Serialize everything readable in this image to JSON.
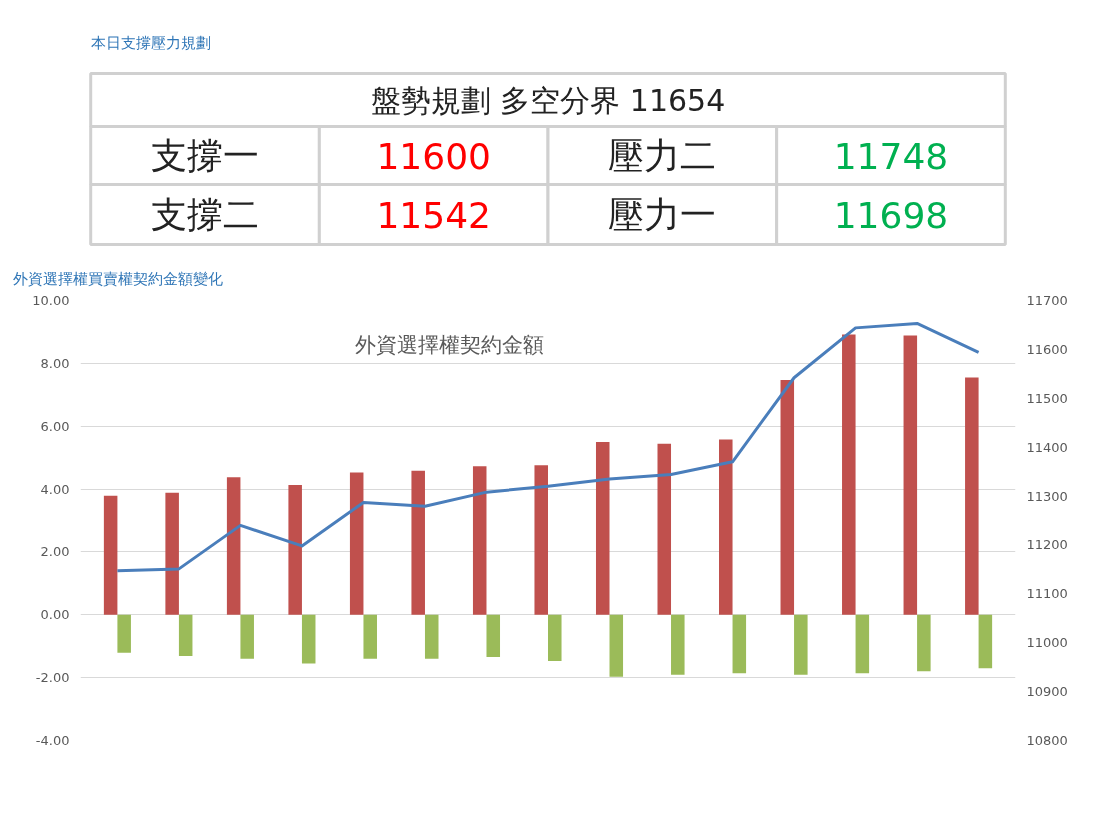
{
  "chart_data": [
    {
      "type": "other",
      "title": "本日支撐壓力規劃",
      "annotations": [
        "盤勢規劃 多空分界 11654",
        "支撐一",
        "11600",
        "壓力二",
        "11748",
        "支撐二",
        "11542",
        "壓力一",
        "11698"
      ]
    },
    {
      "type": "bar",
      "title": "外資選擇權買賣權契約金額變化",
      "subtitle": "外資選擇權契約金額",
      "categories": [
        null,
        null,
        null,
        null,
        null,
        null,
        null,
        null,
        null,
        null,
        null,
        null,
        null,
        null,
        null
      ],
      "series": [
        {
          "color": "#c0504d",
          "values": [
            3.79,
            3.88,
            4.38,
            4.13,
            4.53,
            4.58,
            4.73,
            4.76,
            5.5,
            5.44,
            5.58,
            7.47,
            8.92,
            8.89,
            7.55
          ]
        },
        {
          "color": "#9bbb59",
          "values": [
            -1.21,
            -1.31,
            -1.4,
            -1.55,
            -1.4,
            -1.4,
            -1.34,
            -1.47,
            -1.97,
            -1.91,
            -1.86,
            -1.91,
            -1.86,
            -1.8,
            -1.7
          ]
        },
        {
          "type": "line",
          "axis": "y2",
          "color": "#4a7ebb",
          "values": [
            11147,
            11151,
            11240,
            11198,
            11287,
            11279,
            11308,
            11320,
            11335,
            11344,
            11370,
            11542,
            11644,
            11653,
            11594
          ]
        }
      ],
      "ylim": [
        -4,
        10
      ],
      "yticks": [
        {
          "value": -4,
          "label": "-4.00"
        },
        {
          "value": -2,
          "label": "-2.00"
        },
        {
          "value": 0,
          "label": "0.00"
        },
        {
          "value": 2,
          "label": "2.00"
        },
        {
          "value": 4,
          "label": "4.00"
        },
        {
          "value": 6,
          "label": "6.00"
        },
        {
          "value": 8,
          "label": "8.00"
        },
        {
          "value": 10,
          "label": "10.00"
        }
      ],
      "y2lim": [
        10800,
        11700
      ],
      "y2ticks": [
        10800,
        10900,
        11000,
        11100,
        11200,
        11300,
        11400,
        11500,
        11600,
        11700
      ],
      "grid": "y",
      "marker": "none",
      "line_style": "solid"
    }
  ]
}
